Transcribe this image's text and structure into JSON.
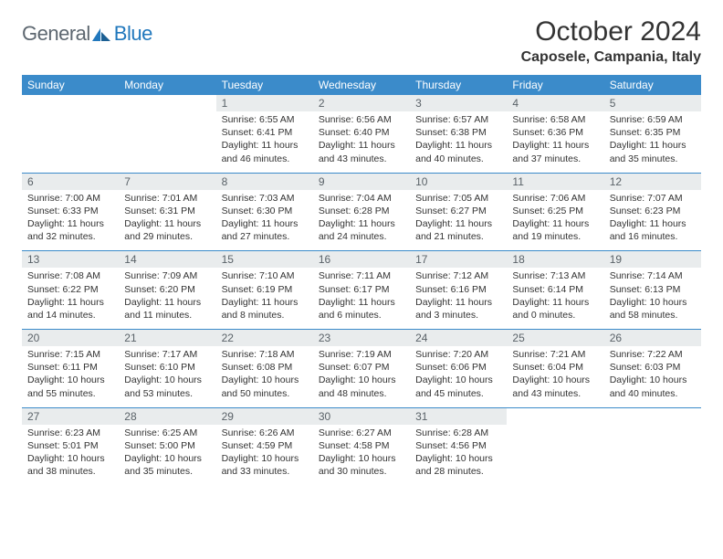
{
  "brand": {
    "part1": "General",
    "part2": "Blue"
  },
  "title": "October 2024",
  "location": "Caposele, Campania, Italy",
  "colors": {
    "header_bg": "#3b8bca",
    "header_text": "#ffffff",
    "daynum_bg": "#e9eced",
    "daynum_text": "#5a6268",
    "body_text": "#333333",
    "separator": "#3b8bca",
    "logo_dark": "#5d6770",
    "logo_blue": "#2178bd"
  },
  "typography": {
    "title_fontsize": 30,
    "location_fontsize": 16,
    "header_fontsize": 12,
    "daynum_fontsize": 12,
    "body_fontsize": 10.5
  },
  "weekdays": [
    "Sunday",
    "Monday",
    "Tuesday",
    "Wednesday",
    "Thursday",
    "Friday",
    "Saturday"
  ],
  "weeks": [
    [
      {
        "n": "",
        "sunrise": "",
        "sunset": "",
        "daylight": ""
      },
      {
        "n": "",
        "sunrise": "",
        "sunset": "",
        "daylight": ""
      },
      {
        "n": "1",
        "sunrise": "Sunrise: 6:55 AM",
        "sunset": "Sunset: 6:41 PM",
        "daylight": "Daylight: 11 hours and 46 minutes."
      },
      {
        "n": "2",
        "sunrise": "Sunrise: 6:56 AM",
        "sunset": "Sunset: 6:40 PM",
        "daylight": "Daylight: 11 hours and 43 minutes."
      },
      {
        "n": "3",
        "sunrise": "Sunrise: 6:57 AM",
        "sunset": "Sunset: 6:38 PM",
        "daylight": "Daylight: 11 hours and 40 minutes."
      },
      {
        "n": "4",
        "sunrise": "Sunrise: 6:58 AM",
        "sunset": "Sunset: 6:36 PM",
        "daylight": "Daylight: 11 hours and 37 minutes."
      },
      {
        "n": "5",
        "sunrise": "Sunrise: 6:59 AM",
        "sunset": "Sunset: 6:35 PM",
        "daylight": "Daylight: 11 hours and 35 minutes."
      }
    ],
    [
      {
        "n": "6",
        "sunrise": "Sunrise: 7:00 AM",
        "sunset": "Sunset: 6:33 PM",
        "daylight": "Daylight: 11 hours and 32 minutes."
      },
      {
        "n": "7",
        "sunrise": "Sunrise: 7:01 AM",
        "sunset": "Sunset: 6:31 PM",
        "daylight": "Daylight: 11 hours and 29 minutes."
      },
      {
        "n": "8",
        "sunrise": "Sunrise: 7:03 AM",
        "sunset": "Sunset: 6:30 PM",
        "daylight": "Daylight: 11 hours and 27 minutes."
      },
      {
        "n": "9",
        "sunrise": "Sunrise: 7:04 AM",
        "sunset": "Sunset: 6:28 PM",
        "daylight": "Daylight: 11 hours and 24 minutes."
      },
      {
        "n": "10",
        "sunrise": "Sunrise: 7:05 AM",
        "sunset": "Sunset: 6:27 PM",
        "daylight": "Daylight: 11 hours and 21 minutes."
      },
      {
        "n": "11",
        "sunrise": "Sunrise: 7:06 AM",
        "sunset": "Sunset: 6:25 PM",
        "daylight": "Daylight: 11 hours and 19 minutes."
      },
      {
        "n": "12",
        "sunrise": "Sunrise: 7:07 AM",
        "sunset": "Sunset: 6:23 PM",
        "daylight": "Daylight: 11 hours and 16 minutes."
      }
    ],
    [
      {
        "n": "13",
        "sunrise": "Sunrise: 7:08 AM",
        "sunset": "Sunset: 6:22 PM",
        "daylight": "Daylight: 11 hours and 14 minutes."
      },
      {
        "n": "14",
        "sunrise": "Sunrise: 7:09 AM",
        "sunset": "Sunset: 6:20 PM",
        "daylight": "Daylight: 11 hours and 11 minutes."
      },
      {
        "n": "15",
        "sunrise": "Sunrise: 7:10 AM",
        "sunset": "Sunset: 6:19 PM",
        "daylight": "Daylight: 11 hours and 8 minutes."
      },
      {
        "n": "16",
        "sunrise": "Sunrise: 7:11 AM",
        "sunset": "Sunset: 6:17 PM",
        "daylight": "Daylight: 11 hours and 6 minutes."
      },
      {
        "n": "17",
        "sunrise": "Sunrise: 7:12 AM",
        "sunset": "Sunset: 6:16 PM",
        "daylight": "Daylight: 11 hours and 3 minutes."
      },
      {
        "n": "18",
        "sunrise": "Sunrise: 7:13 AM",
        "sunset": "Sunset: 6:14 PM",
        "daylight": "Daylight: 11 hours and 0 minutes."
      },
      {
        "n": "19",
        "sunrise": "Sunrise: 7:14 AM",
        "sunset": "Sunset: 6:13 PM",
        "daylight": "Daylight: 10 hours and 58 minutes."
      }
    ],
    [
      {
        "n": "20",
        "sunrise": "Sunrise: 7:15 AM",
        "sunset": "Sunset: 6:11 PM",
        "daylight": "Daylight: 10 hours and 55 minutes."
      },
      {
        "n": "21",
        "sunrise": "Sunrise: 7:17 AM",
        "sunset": "Sunset: 6:10 PM",
        "daylight": "Daylight: 10 hours and 53 minutes."
      },
      {
        "n": "22",
        "sunrise": "Sunrise: 7:18 AM",
        "sunset": "Sunset: 6:08 PM",
        "daylight": "Daylight: 10 hours and 50 minutes."
      },
      {
        "n": "23",
        "sunrise": "Sunrise: 7:19 AM",
        "sunset": "Sunset: 6:07 PM",
        "daylight": "Daylight: 10 hours and 48 minutes."
      },
      {
        "n": "24",
        "sunrise": "Sunrise: 7:20 AM",
        "sunset": "Sunset: 6:06 PM",
        "daylight": "Daylight: 10 hours and 45 minutes."
      },
      {
        "n": "25",
        "sunrise": "Sunrise: 7:21 AM",
        "sunset": "Sunset: 6:04 PM",
        "daylight": "Daylight: 10 hours and 43 minutes."
      },
      {
        "n": "26",
        "sunrise": "Sunrise: 7:22 AM",
        "sunset": "Sunset: 6:03 PM",
        "daylight": "Daylight: 10 hours and 40 minutes."
      }
    ],
    [
      {
        "n": "27",
        "sunrise": "Sunrise: 6:23 AM",
        "sunset": "Sunset: 5:01 PM",
        "daylight": "Daylight: 10 hours and 38 minutes."
      },
      {
        "n": "28",
        "sunrise": "Sunrise: 6:25 AM",
        "sunset": "Sunset: 5:00 PM",
        "daylight": "Daylight: 10 hours and 35 minutes."
      },
      {
        "n": "29",
        "sunrise": "Sunrise: 6:26 AM",
        "sunset": "Sunset: 4:59 PM",
        "daylight": "Daylight: 10 hours and 33 minutes."
      },
      {
        "n": "30",
        "sunrise": "Sunrise: 6:27 AM",
        "sunset": "Sunset: 4:58 PM",
        "daylight": "Daylight: 10 hours and 30 minutes."
      },
      {
        "n": "31",
        "sunrise": "Sunrise: 6:28 AM",
        "sunset": "Sunset: 4:56 PM",
        "daylight": "Daylight: 10 hours and 28 minutes."
      },
      {
        "n": "",
        "sunrise": "",
        "sunset": "",
        "daylight": ""
      },
      {
        "n": "",
        "sunrise": "",
        "sunset": "",
        "daylight": ""
      }
    ]
  ]
}
